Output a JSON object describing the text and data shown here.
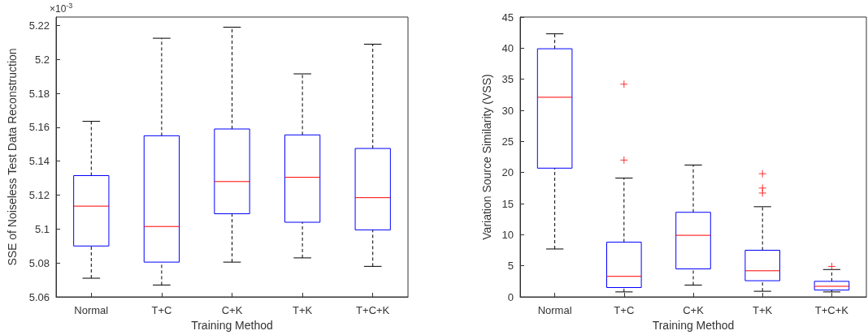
{
  "chart_data": [
    {
      "type": "box",
      "xlabel": "Training Method",
      "ylabel": "SSE of Noiseless Test Data Reconstruction",
      "annotations": [
        "×10$^{-3}$"
      ],
      "categories": [
        "Normal",
        "T+C",
        "C+K",
        "T+K",
        "T+C+K"
      ],
      "series": [
        {
          "color": "#0000ff",
          "boxes": [
            {
              "low": 5.071,
              "q1": 5.09,
              "median": 5.1135,
              "q3": 5.1315,
              "high": 5.1635
            },
            {
              "low": 5.067,
              "q1": 5.0805,
              "median": 5.1015,
              "q3": 5.155,
              "high": 5.2125
            },
            {
              "low": 5.0805,
              "q1": 5.109,
              "median": 5.128,
              "q3": 5.159,
              "high": 5.219
            },
            {
              "low": 5.083,
              "q1": 5.104,
              "median": 5.1305,
              "q3": 5.1555,
              "high": 5.1915
            },
            {
              "low": 5.078,
              "q1": 5.0995,
              "median": 5.1185,
              "q3": 5.1475,
              "high": 5.209
            }
          ]
        }
      ],
      "ylim": [
        5.06,
        5.225
      ],
      "yticks": [
        5.06,
        5.08,
        5.1,
        5.12,
        5.14,
        5.16,
        5.18,
        5.2,
        5.22
      ],
      "grid": false
    },
    {
      "type": "box",
      "xlabel": "Training Method",
      "ylabel": "Variation Source Similarity (VSS)",
      "marker": "cross",
      "categories": [
        "Normal",
        "T+C",
        "C+K",
        "T+K",
        "T+C+K"
      ],
      "series": [
        {
          "color": "#0000ff",
          "boxes": [
            {
              "low": 7.7,
              "q1": 20.7,
              "median": 32.1,
              "q3": 39.9,
              "high": 42.3
            },
            {
              "low": 0.8,
              "q1": 1.5,
              "median": 3.3,
              "q3": 8.8,
              "high": 19.1,
              "outliers": [
                22.0,
                34.2
              ]
            },
            {
              "low": 1.9,
              "q1": 4.5,
              "median": 9.9,
              "q3": 13.6,
              "high": 21.2
            },
            {
              "low": 0.9,
              "q1": 2.6,
              "median": 4.2,
              "q3": 7.5,
              "high": 14.5,
              "outliers": [
                16.7,
                17.5,
                19.8
              ]
            },
            {
              "low": 0.8,
              "q1": 1.1,
              "median": 1.7,
              "q3": 2.5,
              "high": 4.4,
              "outliers": [
                4.9
              ]
            }
          ]
        }
      ],
      "ylim": [
        0,
        45
      ],
      "yticks": [
        0,
        5,
        10,
        15,
        20,
        25,
        30,
        35,
        40,
        45
      ],
      "grid": false
    }
  ]
}
